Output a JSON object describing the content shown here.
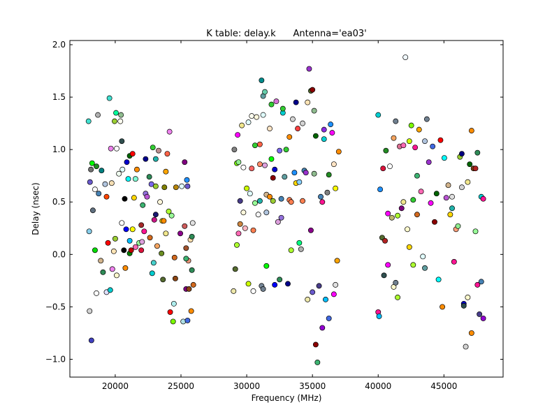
{
  "chart_data": {
    "type": "scatter",
    "title": "K table: delay.k      Antenna='ea03'",
    "xlabel": "Frequency (MHz)",
    "ylabel": "Delay (nsec)",
    "xlim": [
      16550,
      49500
    ],
    "ylim": [
      -1.17,
      2.04
    ],
    "xticks": [
      20000,
      25000,
      30000,
      35000,
      40000,
      45000
    ],
    "yticks": [
      {
        "value": -1.0,
        "label": "−1.0"
      },
      {
        "value": -0.5,
        "label": "−0.5"
      },
      {
        "value": 0.0,
        "label": "0.0"
      },
      {
        "value": 0.5,
        "label": "0.5"
      },
      {
        "value": 1.0,
        "label": "1.0"
      },
      {
        "value": 1.5,
        "label": "1.5"
      },
      {
        "value": 2.0,
        "label": "2.0"
      }
    ],
    "marker_edge_color": "#000000",
    "x": [
      17970,
      18050,
      18190,
      18150,
      18240,
      18080,
      18300,
      18020,
      18460,
      18460,
      18570,
      18680,
      18740,
      18570,
      18960,
      18900,
      19070,
      19230,
      19340,
      19340,
      19560,
      19450,
      19620,
      19670,
      19780,
      19730,
      19950,
      20060,
      19890,
      20000,
      20110,
      20110,
      20280,
      20390,
      20440,
      20500,
      20500,
      20550,
      20660,
      20720,
      20770,
      20880,
      20830,
      20990,
      21100,
      21100,
      21210,
      21100,
      21320,
      21320,
      21430,
      21540,
      21540,
      21650,
      21820,
      21980,
      21980,
      22090,
      22040,
      22200,
      22310,
      22310,
      22420,
      22590,
      22640,
      22750,
      22810,
      22860,
      22920,
      23080,
      23080,
      22970,
      23080,
      23190,
      23300,
      23410,
      23520,
      23580,
      23630,
      23690,
      23740,
      23850,
      23850,
      23960,
      24130,
      24070,
      24180,
      24290,
      24400,
      24510,
      24460,
      24570,
      24620,
      24950,
      25060,
      25170,
      25280,
      25390,
      25280,
      25390,
      25450,
      25500,
      25500,
      25560,
      25610,
      25720,
      25780,
      25830,
      25830,
      25890,
      25940,
      25390,
      29060,
      29000,
      29130,
      29250,
      29250,
      29310,
      29380,
      29380,
      29500,
      29500,
      29750,
      29750,
      29630,
      29880,
      30000,
      30130,
      30130,
      30250,
      30380,
      30380,
      30500,
      30500,
      30630,
      30630,
      30750,
      30880,
      31000,
      31000,
      31000,
      31130,
      31130,
      31250,
      31250,
      31380,
      31250,
      31380,
      31500,
      31500,
      31500,
      31750,
      31750,
      31880,
      31880,
      32000,
      32000,
      32130,
      32130,
      32250,
      32380,
      32500,
      32500,
      32630,
      32630,
      32750,
      32750,
      32880,
      33000,
      33130,
      33250,
      33250,
      33380,
      33380,
      33500,
      33630,
      33750,
      33750,
      33880,
      34000,
      34000,
      34130,
      34250,
      34380,
      34500,
      34630,
      34630,
      34880,
      34880,
      35000,
      35000,
      35130,
      35250,
      35250,
      35380,
      35500,
      35630,
      35750,
      35750,
      35880,
      35880,
      36000,
      36130,
      36250,
      36250,
      36380,
      36500,
      36630,
      36630,
      36750,
      36750,
      36880,
      37000,
      34750,
      35130,
      34250,
      40000,
      40000,
      40070,
      40150,
      40300,
      40370,
      40440,
      40520,
      40590,
      40740,
      40740,
      40890,
      41040,
      41180,
      41180,
      41330,
      41330,
      41480,
      41480,
      41630,
      41780,
      41920,
      41920,
      42070,
      42220,
      42370,
      42370,
      42520,
      42660,
      42660,
      42810,
      42960,
      42960,
      43110,
      43260,
      43400,
      43550,
      43550,
      43700,
      43850,
      44000,
      44140,
      44290,
      44440,
      44590,
      44740,
      44880,
      45030,
      45180,
      45330,
      45480,
      45620,
      45770,
      45920,
      46070,
      46220,
      46360,
      46510,
      46510,
      46660,
      46810,
      46810,
      46960,
      47100,
      47100,
      47250,
      47400,
      47550,
      47550,
      47700,
      47840,
      47840,
      47990,
      47990,
      47400,
      45620,
      46360
    ],
    "values": [
      1.27,
      -0.54,
      -0.82,
      0.81,
      0.87,
      0.69,
      0.42,
      0.22,
      0.04,
      0.62,
      -0.37,
      1.33,
      0.58,
      0.84,
      0.8,
      -0.06,
      -0.17,
      0.67,
      0.55,
      -0.36,
      1.49,
      0.11,
      -0.34,
      1.01,
      -0.14,
      0.68,
      1.27,
      1.35,
      0.03,
      0.15,
      1.01,
      -0.2,
      0.77,
      1.27,
      1.33,
      1.08,
      0.3,
      0.81,
      0.04,
      0.53,
      -0.13,
      0.88,
      0.24,
      0.72,
      0.13,
      0.01,
      0.04,
      0.94,
      0.96,
      0.24,
      0.54,
      0.07,
      0.72,
      0.81,
      0.11,
      0.04,
      0.28,
      0.47,
      0.12,
      0.22,
      0.58,
      0.91,
      0.55,
      0.74,
      0.16,
      0.67,
      -0.18,
      1.02,
      -0.08,
      0.91,
      0.65,
      0.33,
      0.38,
      0.08,
      0.99,
      0.5,
      0.01,
      0.32,
      -0.24,
      0.32,
      0.64,
      0.2,
      0.79,
      0.96,
      1.17,
      0.41,
      -0.55,
      0.37,
      -0.64,
      -0.03,
      -0.47,
      -0.23,
      0.64,
      0.2,
      0.65,
      -0.64,
      0.88,
      -0.33,
      0.27,
      0.06,
      0.71,
      -0.63,
      0.65,
      -0.06,
      -0.33,
      0.14,
      -0.54,
      -0.15,
      0.17,
      0.3,
      -0.29,
      -0.04,
      1.0,
      -0.35,
      -0.14,
      0.87,
      0.09,
      1.14,
      0.88,
      0.2,
      0.51,
      0.29,
      0.4,
      0.83,
      1.23,
      0.25,
      0.63,
      -0.28,
      1.26,
      0.58,
      0.82,
      1.32,
      0.23,
      -0.35,
      1.04,
      0.49,
      1.31,
      0.38,
      0.86,
      1.05,
      0.51,
      1.66,
      -0.3,
      1.51,
      -0.33,
      1.55,
      1.33,
      0.85,
      0.57,
      0.4,
      -0.11,
      1.2,
      0.55,
      0.91,
      1.43,
      0.51,
      0.73,
      0.81,
      -0.29,
      1.46,
      0.31,
      -0.24,
      0.99,
      0.53,
      0.35,
      1.35,
      1.39,
      0.74,
      1.0,
      -0.28,
      0.52,
      1.12,
      0.5,
      0.04,
      1.29,
      0.78,
      0.68,
      1.45,
      1.2,
      0.69,
      0.11,
      0.05,
      1.25,
      0.8,
      0.78,
      1.45,
      -0.43,
      1.56,
      0.23,
      1.57,
      -0.36,
      1.37,
      1.13,
      -0.86,
      -1.03,
      -0.3,
      0.55,
      -0.7,
      0.5,
      1.19,
      1.1,
      -0.43,
      0.59,
      0.76,
      -0.61,
      1.24,
      1.16,
      -0.38,
      0.86,
      -0.29,
      0.63,
      -0.06,
      0.98,
      1.77,
      0.77,
      0.51,
      1.33,
      -0.55,
      -0.59,
      0.62,
      0.16,
      0.82,
      -0.2,
      0.13,
      0.99,
      0.39,
      -0.1,
      0.84,
      0.35,
      1.11,
      -0.31,
      1.27,
      -0.27,
      0.37,
      -0.41,
      1.03,
      0.44,
      1.04,
      0.5,
      1.88,
      0.24,
      1.08,
      0.07,
      1.23,
      -0.1,
      0.52,
      1.02,
      0.38,
      0.75,
      1.19,
      0.6,
      -0.02,
      -0.13,
      1.08,
      1.29,
      0.88,
      0.49,
      1.03,
      0.31,
      0.58,
      -0.24,
      1.09,
      -0.5,
      0.92,
      0.54,
      0.66,
      0.38,
      0.55,
      -0.07,
      0.24,
      0.27,
      0.93,
      0.96,
      -0.47,
      -0.49,
      -0.88,
      0.69,
      -0.41,
      0.86,
      1.18,
      -0.75,
      0.82,
      0.22,
      -0.29,
      0.97,
      -0.57,
      0.55,
      -0.26,
      0.53,
      -0.61,
      0.82,
      0.44,
      0.64
    ],
    "colors": [
      "#40e0d0",
      "#d3d3d3",
      "#4040c0",
      "#707070",
      "#00ff00",
      "#6a5acd",
      "#607080",
      "#87ceeb",
      "#00dd00",
      "#ffffff",
      "#ffffff",
      "#b0b0b0",
      "#4682b4",
      "#228b22",
      "#008080",
      "#d2b48c",
      "#2e8b57",
      "#b0c4de",
      "#ff4500",
      "#e0e0ff",
      "#40e0d0",
      "#ff0000",
      "#00ced1",
      "#ee82ee",
      "#ee82ee",
      "#f5deb3",
      "#9acd32",
      "#00fa9a",
      "#ffe4b5",
      "#9acd32",
      "#ffffff",
      "#fffacd",
      "#f0fff0",
      "#fffff0",
      "#8fbc8f",
      "#2f4f4f",
      "#ffffff",
      "#e0ffff",
      "#000000",
      "#000000",
      "#ff8c00",
      "#0000cd",
      "#0000ff",
      "#00ffff",
      "#00bfff",
      "#008000",
      "#c00000",
      "#006400",
      "#ff0000",
      "#ffff00",
      "#ffd700",
      "#ff69b4",
      "#7fffd4",
      "#ff8c00",
      "#98fb98",
      "#dc143c",
      "#a52a2a",
      "#3cb371",
      "#dda0dd",
      "#ff1493",
      "#9370db",
      "#00008b",
      "#ba55d3",
      "#2e8b57",
      "#d2691e",
      "#7b68ee",
      "#00ced1",
      "#32cd32",
      "#48d1cc",
      "#20b2aa",
      "#9acd32",
      "#c71585",
      "#191970",
      "#f4a460",
      "#bc8f8f",
      "#fff8dc",
      "#6b8e23",
      "#ffd700",
      "#556b2f",
      "#ff8c00",
      "#808000",
      "#f0e68c",
      "#ffa500",
      "#ff6347",
      "#ee82ee",
      "#adff2f",
      "#ff0000",
      "#98fb98",
      "#7cfc00",
      "#d2691e",
      "#afeeee",
      "#8b4513",
      "#b8860b",
      "#8b008b",
      "#e0ffff",
      "#b0e0e6",
      "#800080",
      "#800080",
      "#cd5c5c",
      "#a0522d",
      "#1e90ff",
      "#4169e1",
      "#6a5acd",
      "#e9967a",
      "#8b4513",
      "#ffdead",
      "#ff8c00",
      "#2e8b57",
      "#2e8b57",
      "#e0e0e0",
      "#d2691e",
      "#3cb371",
      "#808080",
      "#eee8aa",
      "#556b2f",
      "#7cfc00",
      "#adff2f",
      "#ff00ff",
      "#90ee90",
      "#ff69b4",
      "#483d8b",
      "#cd853f",
      "#fff8dc",
      "#ffffff",
      "#f0e68c",
      "#ffb6c1",
      "#ccff00",
      "#ccff00",
      "#e0ffff",
      "#e0ffff",
      "#ff6666",
      "#fffff0",
      "#ff7f50",
      "#ffffff",
      "#32cd32",
      "#98fb98",
      "#fff8dc",
      "#f5f5f5",
      "#ff8c69",
      "#ff6347",
      "#20b2aa",
      "#008b8b",
      "#778899",
      "#5f9ea0",
      "#708090",
      "#66cdaa",
      "#e0ffff",
      "#dda0dd",
      "#d2b48c",
      "#b0c4de",
      "#00ff00",
      "#ffe4c4",
      "#ff8c00",
      "#00ff00",
      "#32cd32",
      "#9acd32",
      "#8b0000",
      "#0000cd",
      "#0000ff",
      "#da70d6",
      "#dda0dd",
      "#2e8b57",
      "#7b68ee",
      "#4682b4",
      "#9370db",
      "#00ced1",
      "#32cd32",
      "#5f9ea0",
      "#32cd32",
      "#00008b",
      "#ff7f50",
      "#ff8c00",
      "#ff7f50",
      "#adff2f",
      "#d3d3d3",
      "#1e90ff",
      "#ffd700",
      "#00008b",
      "#ff4040",
      "#87cefa",
      "#00ff7f",
      "#b0b0b0",
      "#d3d3d3",
      "#4682b4",
      "#9932cc",
      "#ffe4b5",
      "#eee8aa",
      "#556b2f",
      "#8b008b",
      "#8b0000",
      "#6a5acd",
      "#8fbc8f",
      "#006400",
      "#8b0000",
      "#3cb371",
      "#483d8b",
      "#4682b4",
      "#9400d3",
      "#ff1493",
      "#8a2be2",
      "#00ced1",
      "#00bfff",
      "#808080",
      "#228b22",
      "#4169e1",
      "#1e90ff",
      "#ff00ff",
      "#ff00ff",
      "#ffe4c4",
      "#e0e0e0",
      "#ffff00",
      "#ffa500",
      "#ff8c00",
      "#9932cc",
      "#8fbc8f",
      "#ff7f50",
      "#00ced1",
      "#ff1493",
      "#00bfff",
      "#1e90ff",
      "#556b2f",
      "#dc143c",
      "#2f4f4f",
      "#b22222",
      "#228b22",
      "#ff00ff",
      "#ff00ff",
      "#ffffff",
      "#bdb76b",
      "#f4a460",
      "#fffacd",
      "#708090",
      "#708090",
      "#adff2f",
      "#adff2f",
      "#db7093",
      "#800080",
      "#ff69b4",
      "#f0e68c",
      "#f0f8ff",
      "#fffacd",
      "#ccff00",
      "#ffd700",
      "#7cfc00",
      "#adff2f",
      "#32cd32",
      "#ff1493",
      "#d2691e",
      "#3cb371",
      "#ffa500",
      "#ff69b4",
      "#e0ffff",
      "#5f9ea0",
      "#b0c4de",
      "#708090",
      "#9932cc",
      "#ff00ff",
      "#4169e1",
      "#8b0000",
      "#006400",
      "#00ffff",
      "#ff0000",
      "#ff8c00",
      "#00ffff",
      "#ba55d3",
      "#d2b48c",
      "#ffd700",
      "#e0e0e0",
      "#ff1493",
      "#ffa07a",
      "#90ee90",
      "#9acd32",
      "#000080",
      "#0000cd",
      "#2f4f4f",
      "#d3d3d3",
      "#f0e68c",
      "#fffacd",
      "#006400",
      "#ff8c00",
      "#ff8c00",
      "#8b4513",
      "#98fb98",
      "#ff1493",
      "#2e8b57",
      "#483d8b",
      "#00ced1",
      "#4682b4",
      "#ff1493",
      "#9400d3",
      "#b22222",
      "#20b2aa",
      "#d3d3d3"
    ]
  }
}
